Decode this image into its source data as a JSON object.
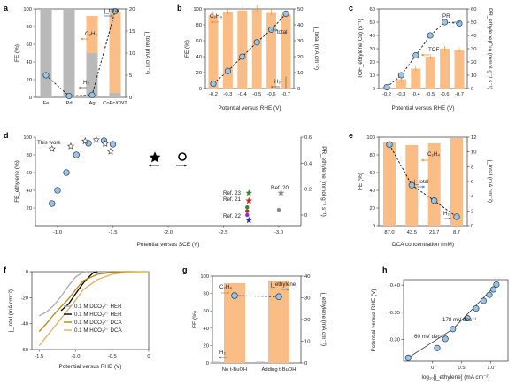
{
  "figure": {
    "colors": {
      "orange": "#fbbd86",
      "orange_text": "#ec8a32",
      "grey_bar": "#b9b9b9",
      "marker_fill": "#9cc2e4",
      "marker_edge": "#1f3c5c",
      "blue_text": "#3b87c8",
      "gold": "#b8860b",
      "ref_green": "#2e8b2e",
      "ref_red": "#d42020",
      "ref_blue": "#2030b0",
      "ref_grey": "#8a8a8a"
    }
  },
  "chart_data": [
    {
      "panel": "a",
      "type": "bar",
      "categories": [
        "Fe",
        "Pd",
        "Ag",
        "CoPc/CNT"
      ],
      "series": [
        {
          "name": "H2",
          "values": [
            100,
            100,
            50,
            5
          ]
        },
        {
          "name": "C2H4",
          "values": [
            0,
            0,
            42,
            92
          ]
        },
        {
          "name": "j_total",
          "values": [
            5,
            0.3,
            0.5,
            19.5
          ]
        }
      ],
      "ylabel": "FE (%)",
      "y2label": "j_total (mA cm⁻²)",
      "ylim": [
        0,
        100
      ],
      "y2lim": [
        0,
        20
      ],
      "yticks": [
        "0",
        "20",
        "40",
        "60",
        "80",
        "100"
      ],
      "y2ticks": [
        "0",
        "5",
        "10",
        "15",
        "20"
      ],
      "annotations": [
        "C2H4",
        "H2",
        "j_total"
      ]
    },
    {
      "panel": "b",
      "type": "bar",
      "categories": [
        "-0.2",
        "-0.3",
        "-0.4",
        "-0.5",
        "-0.6",
        "-0.7"
      ],
      "series": [
        {
          "name": "C2H4",
          "values": [
            92,
            96,
            98,
            99,
            95,
            93
          ]
        },
        {
          "name": "H2",
          "values": [
            1,
            2,
            2,
            2,
            3,
            5
          ]
        },
        {
          "name": "j_total",
          "values": [
            3,
            11,
            20,
            29,
            37,
            47
          ]
        }
      ],
      "xlabel": "Potential versus RHE (V)",
      "ylabel": "FE (%)",
      "y2label": "j_total (mA cm⁻²)",
      "ylim": [
        0,
        100
      ],
      "y2lim": [
        0,
        50
      ],
      "yticks": [
        "0",
        "20",
        "40",
        "60",
        "80",
        "100"
      ],
      "y2ticks": [
        "0",
        "10",
        "20",
        "30",
        "40",
        "50"
      ],
      "annotations": [
        "C2H4",
        "j_total",
        "H2"
      ]
    },
    {
      "panel": "c",
      "type": "bar",
      "categories": [
        "-0.2",
        "-0.3",
        "-0.4",
        "-0.5",
        "-0.6",
        "-0.7"
      ],
      "series": [
        {
          "name": "TOF",
          "values": [
            1,
            7,
            15,
            24,
            30,
            29
          ]
        },
        {
          "name": "PR",
          "values": [
            1,
            10,
            25,
            40,
            50,
            49
          ]
        }
      ],
      "xlabel": "Potential versus RHE (V)",
      "ylabel": "TOF_ethylene(Cu) (s⁻¹)",
      "y2label": "PR_ethylene(Cu) (mmol g⁻¹ s⁻¹)",
      "ylim": [
        0,
        60
      ],
      "y2lim": [
        0,
        60
      ],
      "yticks": [
        "0",
        "10",
        "20",
        "30",
        "40",
        "50",
        "60"
      ],
      "y2ticks": [
        "0",
        "10",
        "20",
        "30",
        "40",
        "50",
        "60"
      ],
      "annotations": [
        "TOF",
        "PR"
      ]
    },
    {
      "panel": "d",
      "type": "scatter",
      "series": [
        {
          "name": "FE_ethylene",
          "x": [
            -0.95,
            -1.0,
            -1.08,
            -1.17,
            -1.28,
            -1.42,
            -1.5
          ],
          "y": [
            25,
            40,
            60,
            80,
            93,
            96,
            92
          ]
        },
        {
          "name": "This work",
          "x": [
            -0.95,
            -1.12,
            -1.25,
            -1.35,
            -1.43,
            -1.48
          ],
          "y": [
            0.51,
            0.53,
            0.57,
            0.58,
            0.55,
            0.49
          ]
        },
        {
          "name": "Ref. 23",
          "x": [
            -2.72
          ],
          "y": [
            0.15
          ]
        },
        {
          "name": "Ref. 21",
          "x": [
            -2.72
          ],
          "y": [
            0.09
          ]
        },
        {
          "name": "Ref. 22",
          "x": [
            -2.73
          ],
          "y": [
            -0.04
          ]
        },
        {
          "name": "Ref. 20",
          "x": [
            -3.02
          ],
          "y": [
            0.15
          ]
        }
      ],
      "xlabel": "Potential versus SCE (V)",
      "ylabel": "FE_ethylene (%)",
      "y2label": "PR_ethylene (mmol g⁻¹ s⁻¹)",
      "xlim": [
        -0.8,
        -3.2
      ],
      "ylim": [
        0,
        100
      ],
      "y2lim": [
        0,
        0.6
      ],
      "xticks": [
        "-1.0",
        "-1.5",
        "-2.0",
        "-2.5",
        "-3.0"
      ],
      "yticks": [
        "20",
        "40",
        "60",
        "80",
        "100"
      ],
      "y2ticks": [
        "0",
        "0.2",
        "0.4",
        "0.6"
      ],
      "annotations": [
        "This work",
        "Ref. 23",
        "Ref. 21",
        "Ref. 22",
        "Ref. 20"
      ]
    },
    {
      "panel": "e",
      "type": "bar",
      "categories": [
        "87.0",
        "43.5",
        "21.7",
        "8.7"
      ],
      "series": [
        {
          "name": "C2H4",
          "values": [
            95,
            91,
            93,
            99
          ]
        },
        {
          "name": "H2",
          "values": [
            1,
            1,
            1,
            1
          ]
        },
        {
          "name": "j_total",
          "values": [
            11,
            5.5,
            3.4,
            1.2
          ]
        }
      ],
      "xlabel": "DCA concentration (mM)",
      "ylabel": "FE (%)",
      "y2label": "j_total (mA cm⁻²)",
      "ylim": [
        0,
        100
      ],
      "y2lim": [
        0,
        12
      ],
      "yticks": [
        "0",
        "20",
        "40",
        "60",
        "80",
        "100"
      ],
      "y2ticks": [
        "0",
        "2",
        "4",
        "6",
        "8",
        "10",
        "12"
      ],
      "annotations": [
        "C2H4",
        "j_total",
        "H2"
      ]
    },
    {
      "panel": "f",
      "type": "line",
      "series": [
        {
          "name": "0.1 M DCO₃²⁻ HER",
          "x": [
            -1.5,
            -1.4,
            -1.3,
            -1.2,
            -1.1,
            -1.0,
            -0.9,
            -0.85
          ],
          "y": [
            -34,
            -31,
            -26,
            -19,
            -11,
            -4,
            -0.5,
            0
          ]
        },
        {
          "name": "0.1 M HCO₃²⁻ HER",
          "x": [
            -1.2,
            -1.1,
            -1.0,
            -0.9,
            -0.8,
            -0.75,
            -0.7
          ],
          "y": [
            -30,
            -25,
            -17,
            -9,
            -3,
            -0.5,
            0
          ]
        },
        {
          "name": "0.1 M DCO₃²⁻ DCA",
          "x": [
            -1.5,
            -1.4,
            -1.3,
            -1.2,
            -1.1,
            -1.0,
            -0.9,
            -0.7,
            -0.5,
            -0.3,
            -0.1,
            0
          ],
          "y": [
            -46,
            -40,
            -33,
            -27,
            -21,
            -14,
            -7,
            -2,
            -0.5,
            0,
            0,
            0
          ]
        },
        {
          "name": "0.1 M HCO₃²⁻ DCA",
          "x": [
            -1.5,
            -1.4,
            -1.3,
            -1.2,
            -1.1,
            -1.0,
            -0.9,
            -0.7,
            -0.5,
            -0.3,
            -0.1,
            0
          ],
          "y": [
            -57,
            -50,
            -43,
            -36,
            -29,
            -22,
            -14,
            -6,
            -2,
            -0.5,
            0,
            0
          ]
        }
      ],
      "xlabel": "Potential versus RHE (V)",
      "ylabel": "j_total (mA cm⁻²)",
      "xlim": [
        -1.6,
        0
      ],
      "ylim": [
        -60,
        0
      ],
      "xticks": [
        "-1.5",
        "-1.0",
        "-0.5",
        "0"
      ],
      "yticks": [
        "-60",
        "-40",
        "-20",
        "0"
      ]
    },
    {
      "panel": "g",
      "type": "bar",
      "categories": [
        "No t-BuOH",
        "Adding t-BuOH"
      ],
      "series": [
        {
          "name": "C2H4",
          "values": [
            92,
            95
          ]
        },
        {
          "name": "H2",
          "values": [
            1,
            1
          ]
        },
        {
          "name": "j_ethylene",
          "values": [
            31,
            30.5
          ]
        }
      ],
      "ylabel": "FE (%)",
      "y2label": "j_ethylene (mA cm⁻²)",
      "ylim": [
        0,
        100
      ],
      "y2lim": [
        0,
        40
      ],
      "yticks": [
        "0",
        "20",
        "40",
        "60",
        "80",
        "100"
      ],
      "y2ticks": [
        "0",
        "10",
        "20",
        "30",
        "40"
      ],
      "annotations": [
        "C2H4",
        "H2",
        "j_ethylene"
      ]
    },
    {
      "panel": "h",
      "type": "scatter",
      "series": [
        {
          "name": "Tafel",
          "x": [
            -0.42,
            0.08,
            0.22,
            0.35,
            0.6,
            0.75,
            0.88,
            0.98,
            1.05,
            1.1
          ],
          "y": [
            -0.266,
            -0.284,
            -0.301,
            -0.319,
            -0.339,
            -0.357,
            -0.371,
            -0.382,
            -0.392,
            -0.401
          ]
        }
      ],
      "xlabel": "log₁₀[j_ethylene] (mA cm⁻²)",
      "ylabel": "Potential versus RHE (V)",
      "xlim": [
        -0.5,
        1.3
      ],
      "ylim": [
        -0.26,
        -0.41
      ],
      "xticks": [
        "0",
        "0.5",
        "1.0"
      ],
      "yticks": [
        "-0.30",
        "-0.35",
        "-0.40"
      ],
      "annotations": [
        "178 mV dec⁻¹",
        "60 mV dec⁻¹"
      ]
    }
  ],
  "panels": {
    "a": {
      "label": "a",
      "c2h4": "C₂H₄",
      "h2": "H₂",
      "jtotal": "j_total",
      "ylabel": "FE (%)",
      "y2label": "j_total (mA cm⁻²)"
    },
    "b": {
      "label": "b",
      "c2h4": "C₂H₄",
      "h2": "H₂",
      "jtotal": "j_total",
      "xlabel": "Potential versus RHE (V)",
      "ylabel": "FE (%)",
      "y2label": "j_total (mA cm⁻²)"
    },
    "c": {
      "label": "c",
      "tof": "TOF",
      "pr": "PR",
      "xlabel": "Potential versus RHE (V)",
      "ylabel": "TOF_ethylene(Cu) (s⁻¹)",
      "y2label": "PR_ethylene(Cu) (mmol g⁻¹ s⁻¹)"
    },
    "d": {
      "label": "d",
      "this_work": "This work",
      "ref23": "Ref. 23",
      "ref21": "Ref. 21",
      "ref22": "Ref. 22",
      "ref20": "Ref. 20",
      "xlabel": "Potential versus SCE (V)",
      "ylabel": "FE_ethylene (%)",
      "y2label": "PR_ethylene (mmol g⁻¹ s⁻¹)"
    },
    "e": {
      "label": "e",
      "c2h4": "C₂H₄",
      "h2": "H₂",
      "jtotal": "j_total",
      "xlabel": "DCA concentration (mM)",
      "ylabel": "FE (%)",
      "y2label": "j_total (mA cm⁻²)"
    },
    "f": {
      "label": "f",
      "xlabel": "Potential versus RHE (V)",
      "ylabel": "j_total (mA cm⁻²)"
    },
    "g": {
      "label": "g",
      "c2h4": "C₂H₄",
      "h2": "H₂",
      "jeth": "j_ethylene",
      "ylabel": "FE (%)",
      "y2label": "j_ethylene (mA cm⁻²)"
    },
    "h": {
      "label": "h",
      "tafel_high": "178 mV dec⁻¹",
      "tafel_low": "60 mV dec⁻¹",
      "xlabel": "log₁₀[j_ethylene] (mA cm⁻²)",
      "ylabel": "Potential versus RHE (V)"
    }
  }
}
